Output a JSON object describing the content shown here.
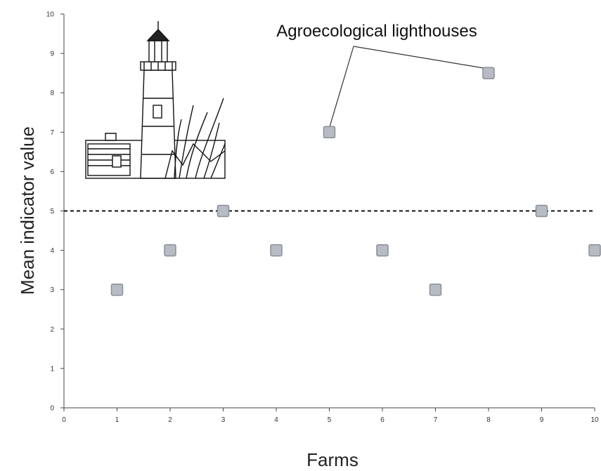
{
  "chart_data": {
    "type": "scatter",
    "title": "",
    "xlabel": "Farms",
    "ylabel": "Mean indicator value",
    "xlim": [
      0,
      10
    ],
    "ylim": [
      0,
      10
    ],
    "xticks": [
      0,
      1,
      2,
      3,
      4,
      5,
      6,
      7,
      8,
      9,
      10
    ],
    "yticks": [
      0,
      1,
      2,
      3,
      4,
      5,
      6,
      7,
      8,
      9,
      10
    ],
    "grid": false,
    "threshold": 5,
    "marker_color": "#b7bcc4",
    "marker_edge_color": "#8a8f96",
    "points": [
      {
        "x": 1,
        "y": 3
      },
      {
        "x": 2,
        "y": 4
      },
      {
        "x": 3,
        "y": 5
      },
      {
        "x": 4,
        "y": 4
      },
      {
        "x": 5,
        "y": 7
      },
      {
        "x": 6,
        "y": 4
      },
      {
        "x": 7,
        "y": 3
      },
      {
        "x": 8,
        "y": 8.5
      },
      {
        "x": 9,
        "y": 5
      },
      {
        "x": 10,
        "y": 4
      }
    ],
    "annotation": {
      "text": "Agroecological lighthouses",
      "targets": [
        5,
        8
      ]
    }
  },
  "illustration": {
    "icon": "lighthouse-icon"
  }
}
